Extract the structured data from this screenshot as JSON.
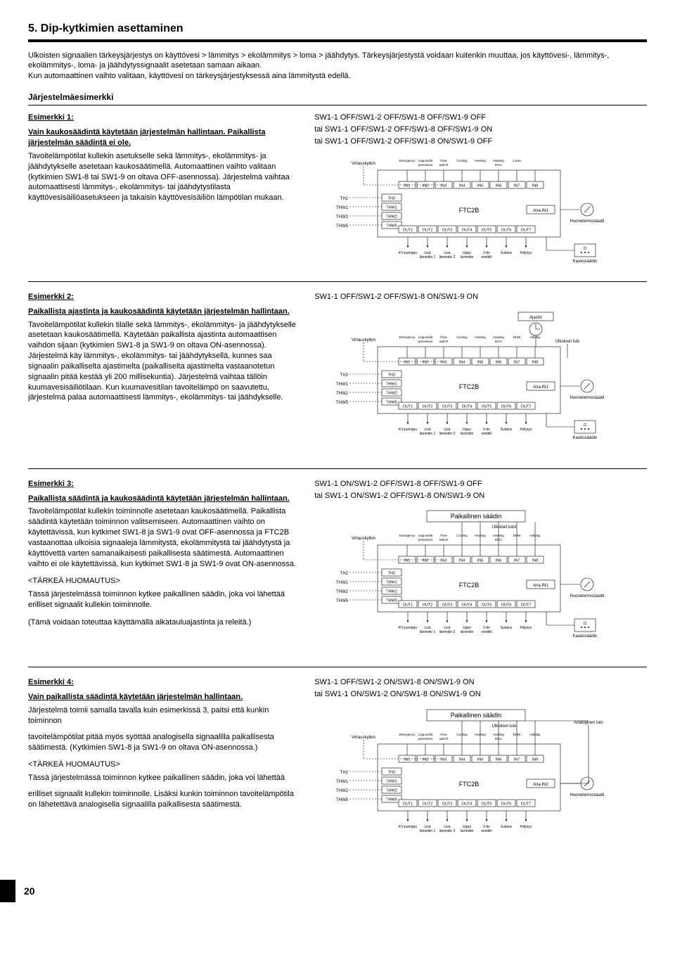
{
  "page": {
    "title": "5.  Dip-kytkimien asettaminen",
    "intro": "Ulkoisten signaalien tärkeysjärjestys on käyttövesi > lämmitys > ekolämmitys > loma > jäähdytys. Tärkeysjärjestystä voidaan kuitenkin muuttaa, jos käyttövesi-, lämmitys-, ekolämmitys-, loma- ja jäähdytyssignaalit asetetaan samaan aikaan.\nKun automaattinen vaihto valitaan, käyttövesi on tärkeysjärjestyksessä aina lämmitystä edellä.",
    "section": "Järjestelmäesimerkki",
    "pagenum": "20"
  },
  "ex1": {
    "title": "Esimerkki 1:",
    "sub": "Vain kaukosäädintä käytetään järjestelmän hallintaan. Paikallista järjestelmän säädintä ei ole.",
    "body": "Tavoitelämpötilat kullekin asetukselle sekä lämmitys-, ekolämmitys- ja jäähdytykselle asetetaan kaukosäätimellä. Automaattinen vaihto valitaan (kytkimien SW1-8 tai SW1-9 on oltava OFF-asennossa). Järjestelmä vaihtaa automaattisesti lämmitys-, ekolämmitys- tai jäähdytystilasta käyttövesisäiliöasetukseen ja takaisin käyttövesisäiliön lämpötilan mukaan.",
    "sw1": "SW1-1 OFF/SW1-2 OFF/SW1-8 OFF/SW1-9 OFF",
    "sw2": "tai SW1-1 OFF/SW1-2 OFF/SW1-8 OFF/SW1-9 ON",
    "sw3": "tai SW1-1 OFF/SW1-2 OFF/SW1-8 ON/SW1-9 OFF"
  },
  "ex2": {
    "title": "Esimerkki 2:",
    "sub": "Paikallista ajastinta ja kaukosäädintä käytetään järjestelmän hallintaan.",
    "body": "Tavoitelämpötilat kullekin tilalle sekä lämmitys-, ekolämmitys- ja jäähdytykselle asetetaan kaukosäätimellä. Käytetään paikallista ajastinta automaattisen vaihdon sijaan (kytkimien SW1-8 ja SW1-9 on oltava ON-asennossa). Järjestelmä käy lämmitys-, ekolämmitys- tai jäähdytyksellä, kunnes saa signaalin paikalliselta ajastimelta (paikalliselta ajastimelta vastaanotetun signaalin pitää kestää yli 200 millisekuntia). Järjestelmä vaihtaa tällöin kuumavesisäiliötilaan. Kun kuumavesitilan tavoitelämpö on saavutettu, järjestelmä palaa automaattisesti lämmitys-, ekolämmitys- tai jäähdykselle.",
    "sw1": "SW1-1 OFF/SW1-2 OFF/SW1-8 ON/SW1-9 ON"
  },
  "ex3": {
    "title": "Esimerkki 3:",
    "sub": "Paikallista säädintä ja kaukosäädintä käytetään järjestelmän hallintaan.",
    "body": "Tavoitelämpötilat kullekin toiminnolle asetetaan kaukosäätimellä. Paikallista säädintä käytetään toiminnon valitsemiseen. Automaattinen vaihto on käytettävissä, kun kytkimet SW1-8 ja SW1-9 ovat OFF-asennossa ja FTC2B vastaanottaa ulkoisia signaaleja lämmitystä, ekolämmitystä tai jäähdytystä ja käyttövettä varten samanaikaisesti paikallisesta säätimestä. Automaattinen vaihto ei ole käytettävissä, kun kytkimet SW1-8 ja SW1-9 ovat ON-asennossa.",
    "note_title": "<TÄRKEÄ HUOMAUTUS>",
    "note_body": "Tässä järjestelmässä toiminnon kytkee paikallinen säädin, joka voi lähettää erilliset signaalit kullekin toiminnolle.",
    "paren": "(Tämä voidaan toteuttaa käyttämällä aikatauluajastinta ja releitä.)",
    "sw1": "SW1-1 ON/SW1-2 OFF/SW1-8 OFF/SW1-9 OFF",
    "sw2": "tai SW1-1 ON/SW1-2 OFF/SW1-8 ON/SW1-9 ON",
    "localctrl": "Paikallinen säädin"
  },
  "ex4": {
    "title": "Esimerkki 4:",
    "sub": "Vain paikallista säädintä käytetään järjestelmän hallintaan.",
    "body1": "Järjestelmä toimii samalla tavalla kuin esimerkissä 3, paitsi että kunkin toiminnon",
    "body2": "tavoitelämpötilat pitää myös syöttää analogisella signaalilla paikallisesta säätimestä. (Kytkimien SW1-8 ja SW1-9 on oltava ON-asennossa.)",
    "note_title": "<TÄRKEÄ HUOMAUTUS>",
    "note_body": "Tässä järjestelmässä toiminnon kytkee paikallinen säädin, joka voi lähettää",
    "note_body2": "erilliset signaalit kullekin toiminnolle. Lisäksi kunkin toiminnon tavoitelämpötila on lähetettävä analogisella signaalilla paikallisesta säätimestä.",
    "sw1": "SW1-1 OFF/SW1-2 ON/SW1-8 ON/SW1-9 ON",
    "sw2": "tai SW1-1 ON/SW1-2 ON/SW1-8 ON/SW1-9 ON",
    "localctrl": "Paikallinen säädin"
  },
  "diagram": {
    "virtauskytkin": "Virtauskytkin",
    "th2": "TH2",
    "thw1": "THW1",
    "thw2": "THW2",
    "thw5": "THW5",
    "in1": "IN1",
    "in2": "IN2",
    "in3": "IN3",
    "in4": "IN4",
    "in5": "IN5",
    "in6": "IN6",
    "in7": "IN7",
    "in8": "IN8",
    "out1": "OUT1",
    "out2": "OUT2",
    "out3": "OUT3",
    "out4": "OUT4",
    "out5": "OUT5",
    "out6": "OUT6",
    "out7": "OUT7",
    "ftc2b": "FTC2B",
    "anain1": "Ana.IN1",
    "anain2": "Ana.IN2",
    "emergency": "Emergency",
    "legionella": "Legionella\nprevention",
    "flow": "Flow\nswitch",
    "cooling": "Cooling",
    "heating": "Heating",
    "heatingeco": "Heating\nECO",
    "loma": "Loma",
    "dhw": "DHW",
    "holiday": "Holiday",
    "huone": "Huonetermostaatti",
    "kaukosaadin": "Kaukosäädin",
    "kvpumppu": "KV-pumppu",
    "lisa1": "Lisä\nlämmitin 1",
    "lisa2": "Lisä\nlämmitin 2",
    "uppo": "Uppo\nlämmitin",
    "tie3": "3-tie\nventtiili",
    "sulatus": "Sulatus",
    "halytys": "Hälytys",
    "ajastin": "Ajastin",
    "ulktulo": "Ulkoinen tulo",
    "ulktulot": "Ulkoiset tulot",
    "analogtulo": "Analoginen tulo"
  }
}
